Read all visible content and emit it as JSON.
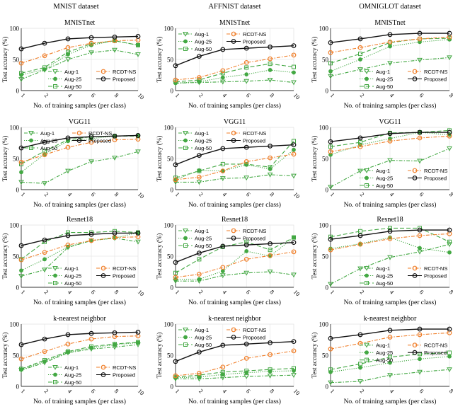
{
  "chart_data": [
    {
      "type": "line",
      "dataset": "MNIST dataset",
      "title": "MNISTnet",
      "xlabel": "No. of training samples (per class)",
      "ylabel": "Test accuracy (%)",
      "x": [
        "1",
        "2",
        "4",
        "6",
        "8",
        "10"
      ],
      "ylim": [
        0,
        100
      ],
      "yticks": [
        0,
        50,
        100
      ],
      "grid": true,
      "legend": "bottom-right",
      "series": [
        {
          "name": "Aug-1",
          "values": [
            18,
            33,
            50,
            61,
            65,
            58
          ]
        },
        {
          "name": "Aug-25",
          "values": [
            25,
            34,
            58,
            73,
            80,
            73
          ]
        },
        {
          "name": "Aug-50",
          "values": [
            28,
            37,
            62,
            75,
            80,
            73
          ]
        },
        {
          "name": "RCDT-NS",
          "values": [
            44,
            56,
            69,
            76,
            80,
            81
          ]
        },
        {
          "name": "Proposed",
          "values": [
            67,
            76,
            83,
            85,
            86,
            87
          ]
        }
      ]
    },
    {
      "type": "line",
      "dataset": "AFFNIST dataset",
      "title": "MNISTnet",
      "xlabel": "No. of training samples (per class)",
      "ylabel": "Test accuracy (%)",
      "x": [
        "1",
        "2",
        "4",
        "6",
        "8",
        "10"
      ],
      "ylim": [
        0,
        100
      ],
      "yticks": [
        0,
        50,
        100
      ],
      "grid": true,
      "legend": "top-left",
      "series": [
        {
          "name": "Aug-1",
          "values": [
            12,
            13,
            14,
            15,
            17,
            13
          ]
        },
        {
          "name": "Aug-25",
          "values": [
            12,
            14,
            21,
            26,
            33,
            29
          ]
        },
        {
          "name": "Aug-50",
          "values": [
            14,
            17,
            28,
            37,
            43,
            38
          ]
        },
        {
          "name": "RCDT-NS",
          "values": [
            17,
            21,
            32,
            45,
            51,
            57
          ]
        },
        {
          "name": "Proposed",
          "values": [
            40,
            55,
            66,
            68,
            70,
            72
          ]
        }
      ]
    },
    {
      "type": "line",
      "dataset": "OMNIGLOT dataset",
      "title": "MNISTnet",
      "xlabel": "No. of training samples (per class)",
      "ylabel": "Test accuracy (%)",
      "x": [
        "1",
        "2",
        "4",
        "6",
        "8"
      ],
      "ylim": [
        0,
        100
      ],
      "yticks": [
        0,
        50,
        100
      ],
      "grid": true,
      "legend": "bottom-right",
      "series": [
        {
          "name": "Aug-1",
          "values": [
            23,
            34,
            44,
            49,
            53
          ]
        },
        {
          "name": "Aug-25",
          "values": [
            31,
            50,
            71,
            78,
            82
          ]
        },
        {
          "name": "Aug-50",
          "values": [
            44,
            59,
            77,
            83,
            84
          ]
        },
        {
          "name": "RCDT-NS",
          "values": [
            61,
            69,
            78,
            83,
            86
          ]
        },
        {
          "name": "Proposed",
          "values": [
            77,
            83,
            90,
            92,
            92
          ]
        }
      ]
    },
    {
      "type": "line",
      "title": "VGG11",
      "xlabel": "No. of training samples (per class)",
      "ylabel": "Test accuracy (%)",
      "x": [
        "1",
        "2",
        "4",
        "6",
        "8",
        "10"
      ],
      "ylim": [
        0,
        100
      ],
      "yticks": [
        0,
        50,
        100
      ],
      "grid": true,
      "legend": "top-left",
      "series": [
        {
          "name": "Aug-1",
          "values": [
            12,
            10,
            30,
            45,
            51,
            61
          ]
        },
        {
          "name": "Aug-25",
          "values": [
            28,
            57,
            78,
            82,
            86,
            87
          ]
        },
        {
          "name": "Aug-50",
          "values": [
            41,
            62,
            80,
            85,
            86,
            86
          ]
        },
        {
          "name": "RCDT-NS",
          "values": [
            44,
            56,
            68,
            76,
            80,
            81
          ]
        },
        {
          "name": "Proposed",
          "values": [
            67,
            76,
            83,
            85,
            86,
            87
          ]
        }
      ]
    },
    {
      "type": "line",
      "title": "VGG11",
      "xlabel": "No. of training samples (per class)",
      "ylabel": "Test accuracy (%)",
      "x": [
        "1",
        "2",
        "4",
        "6",
        "8",
        "10"
      ],
      "ylim": [
        0,
        100
      ],
      "yticks": [
        0,
        50,
        100
      ],
      "grid": true,
      "legend": "top-left",
      "series": [
        {
          "name": "Aug-1",
          "values": [
            12,
            12,
            18,
            19,
            24,
            22
          ]
        },
        {
          "name": "Aug-25",
          "values": [
            16,
            31,
            30,
            40,
            33,
            64
          ]
        },
        {
          "name": "Aug-50",
          "values": [
            19,
            30,
            41,
            41,
            36,
            78
          ]
        },
        {
          "name": "RCDT-NS",
          "values": [
            16,
            20,
            30,
            45,
            51,
            57
          ]
        },
        {
          "name": "Proposed",
          "values": [
            40,
            55,
            66,
            68,
            70,
            72
          ]
        }
      ]
    },
    {
      "type": "line",
      "title": "VGG11",
      "xlabel": "No. of training samples (per class)",
      "ylabel": "Test accuracy (%)",
      "x": [
        "1",
        "2",
        "4",
        "6",
        "8"
      ],
      "ylim": [
        0,
        100
      ],
      "yticks": [
        0,
        50,
        100
      ],
      "grid": true,
      "legend": "bottom-right",
      "series": [
        {
          "name": "Aug-1",
          "values": [
            4,
            30,
            47,
            46,
            66
          ]
        },
        {
          "name": "Aug-25",
          "values": [
            56,
            72,
            82,
            92,
            88
          ]
        },
        {
          "name": "Aug-50",
          "values": [
            69,
            76,
            91,
            92,
            95
          ]
        },
        {
          "name": "RCDT-NS",
          "values": [
            61,
            69,
            78,
            83,
            86
          ]
        },
        {
          "name": "Proposed",
          "values": [
            77,
            83,
            90,
            92,
            92
          ]
        }
      ]
    },
    {
      "type": "line",
      "title": "Resnet18",
      "xlabel": "No. of training samples (per class)",
      "ylabel": "Test accuracy (%)",
      "x": [
        "1",
        "2",
        "4",
        "6",
        "8",
        "10"
      ],
      "ylim": [
        0,
        100
      ],
      "yticks": [
        0,
        50,
        100
      ],
      "grid": true,
      "legend": "bottom-right",
      "series": [
        {
          "name": "Aug-1",
          "values": [
            18,
            28,
            64,
            75,
            79,
            73
          ]
        },
        {
          "name": "Aug-25",
          "values": [
            27,
            45,
            65,
            75,
            79,
            88
          ]
        },
        {
          "name": "Aug-50",
          "values": [
            45,
            73,
            88,
            88,
            90,
            88
          ]
        },
        {
          "name": "RCDT-NS",
          "values": [
            44,
            56,
            68,
            75,
            80,
            81
          ]
        },
        {
          "name": "Proposed",
          "values": [
            67,
            76,
            83,
            85,
            87,
            87
          ]
        }
      ]
    },
    {
      "type": "line",
      "title": "Resnet18",
      "xlabel": "No. of training samples (per class)",
      "ylabel": "Test accuracy (%)",
      "x": [
        "1",
        "2",
        "4",
        "6",
        "8",
        "10"
      ],
      "ylim": [
        0,
        100
      ],
      "yticks": [
        0,
        50,
        100
      ],
      "grid": true,
      "legend": "top-left",
      "series": [
        {
          "name": "Aug-1",
          "values": [
            10,
            10,
            19,
            23,
            25,
            20
          ]
        },
        {
          "name": "Aug-25",
          "values": [
            13,
            13,
            26,
            58,
            50,
            80
          ]
        },
        {
          "name": "Aug-50",
          "values": [
            23,
            45,
            65,
            73,
            60,
            80
          ]
        },
        {
          "name": "RCDT-NS",
          "values": [
            16,
            21,
            32,
            45,
            51,
            57
          ]
        },
        {
          "name": "Proposed",
          "values": [
            40,
            55,
            66,
            68,
            70,
            72
          ]
        }
      ]
    },
    {
      "type": "line",
      "title": "Resnet18",
      "xlabel": "No. of training samples (per class)",
      "ylabel": "Test accuracy (%)",
      "x": [
        "1",
        "2",
        "4",
        "6",
        "8"
      ],
      "ylim": [
        0,
        100
      ],
      "yticks": [
        0,
        50,
        100
      ],
      "grid": true,
      "legend": "bottom-right",
      "series": [
        {
          "name": "Aug-1",
          "values": [
            5,
            30,
            48,
            57,
            69
          ]
        },
        {
          "name": "Aug-25",
          "values": [
            62,
            70,
            80,
            63,
            56
          ]
        },
        {
          "name": "Aug-50",
          "values": [
            81,
            90,
            95,
            95,
            73
          ]
        },
        {
          "name": "RCDT-NS",
          "values": [
            60,
            69,
            78,
            83,
            86
          ]
        },
        {
          "name": "Proposed",
          "values": [
            77,
            83,
            90,
            92,
            92
          ]
        }
      ]
    },
    {
      "type": "line",
      "title": "k-nearest neighbor",
      "xlabel": "No. of training samples (per class)",
      "ylabel": "Test accuracy (%)",
      "x": [
        "1",
        "2",
        "4",
        "6",
        "8",
        "10"
      ],
      "ylim": [
        0,
        100
      ],
      "yticks": [
        0,
        50,
        100
      ],
      "grid": true,
      "legend": "bottom-right",
      "series": [
        {
          "name": "Aug-1",
          "values": [
            26,
            38,
            54,
            60,
            63,
            67
          ]
        },
        {
          "name": "Aug-25",
          "values": [
            27,
            40,
            55,
            62,
            67,
            70
          ]
        },
        {
          "name": "Aug-50",
          "values": [
            28,
            42,
            56,
            64,
            68,
            71
          ]
        },
        {
          "name": "RCDT-NS",
          "values": [
            44,
            56,
            68,
            76,
            80,
            81
          ]
        },
        {
          "name": "Proposed",
          "values": [
            67,
            76,
            83,
            85,
            86,
            87
          ]
        }
      ]
    },
    {
      "type": "line",
      "title": "k-nearest neighbor",
      "xlabel": "No. of training samples (per class)",
      "ylabel": "Test accuracy (%)",
      "x": [
        "1",
        "2",
        "4",
        "6",
        "8",
        "10"
      ],
      "ylim": [
        0,
        100
      ],
      "yticks": [
        0,
        50,
        100
      ],
      "grid": true,
      "legend": "top-left",
      "series": [
        {
          "name": "Aug-1",
          "values": [
            12,
            12,
            14,
            16,
            17,
            18
          ]
        },
        {
          "name": "Aug-25",
          "values": [
            14,
            15,
            19,
            22,
            24,
            25
          ]
        },
        {
          "name": "Aug-50",
          "values": [
            15,
            18,
            23,
            25,
            27,
            29
          ]
        },
        {
          "name": "RCDT-NS",
          "values": [
            17,
            21,
            31,
            45,
            51,
            57
          ]
        },
        {
          "name": "Proposed",
          "values": [
            40,
            55,
            66,
            68,
            70,
            72
          ]
        }
      ]
    },
    {
      "type": "line",
      "title": "k-nearest neighbor",
      "xlabel": "No. of training samples (per class)",
      "ylabel": "Test accuracy (%)",
      "x": [
        "1",
        "2",
        "4",
        "6",
        "8"
      ],
      "ylim": [
        0,
        100
      ],
      "yticks": [
        0,
        50,
        100
      ],
      "grid": true,
      "legend": "center-right",
      "series": [
        {
          "name": "Aug-1",
          "values": [
            6,
            8,
            18,
            23,
            27
          ]
        },
        {
          "name": "Aug-25",
          "values": [
            23,
            30,
            38,
            44,
            48
          ]
        },
        {
          "name": "Aug-50",
          "values": [
            27,
            36,
            47,
            52,
            54
          ]
        },
        {
          "name": "RCDT-NS",
          "values": [
            60,
            69,
            79,
            83,
            86
          ]
        },
        {
          "name": "Proposed",
          "values": [
            77,
            83,
            90,
            92,
            92
          ]
        }
      ]
    }
  ],
  "colors": {
    "Aug-1": "#43a843",
    "Aug-25": "#43a843",
    "Aug-50": "#43a843",
    "RCDT-NS": "#f07f2a",
    "Proposed": "#111111"
  }
}
